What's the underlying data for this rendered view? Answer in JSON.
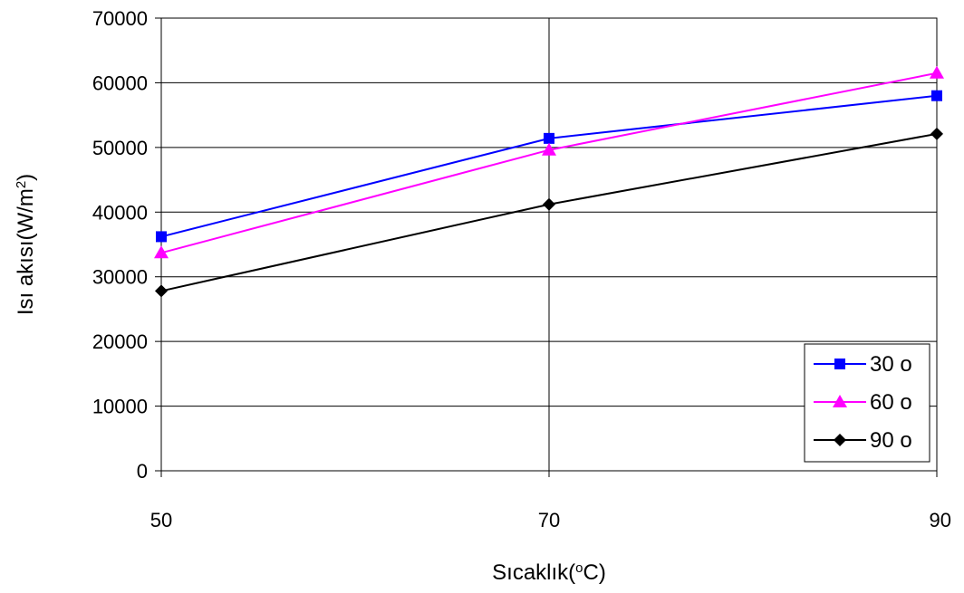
{
  "chart_data": {
    "type": "line",
    "title": "",
    "xlabel": "Sıcaklık(",
    "xlabel_sup": "o",
    "xlabel_tail": "C)",
    "ylabel": "Isı akısı(W/m",
    "ylabel_sup": "2",
    "ylabel_tail": ")",
    "x": [
      50,
      70,
      90
    ],
    "xticks": [
      "50",
      "70",
      "90"
    ],
    "ylim": [
      0,
      70000
    ],
    "yticks": [
      "0",
      "10000",
      "20000",
      "30000",
      "40000",
      "50000",
      "60000",
      "70000"
    ],
    "grid": true,
    "legend_position": "bottom-right",
    "series": [
      {
        "name": "30 o",
        "values": [
          36200,
          51400,
          58000
        ],
        "color": "#0000ff",
        "marker": "square"
      },
      {
        "name": "60 o",
        "values": [
          33700,
          49600,
          61500
        ],
        "color": "#ff00ff",
        "marker": "triangle"
      },
      {
        "name": "90 o",
        "values": [
          27800,
          41200,
          52100
        ],
        "color": "#000000",
        "marker": "diamond"
      }
    ]
  }
}
